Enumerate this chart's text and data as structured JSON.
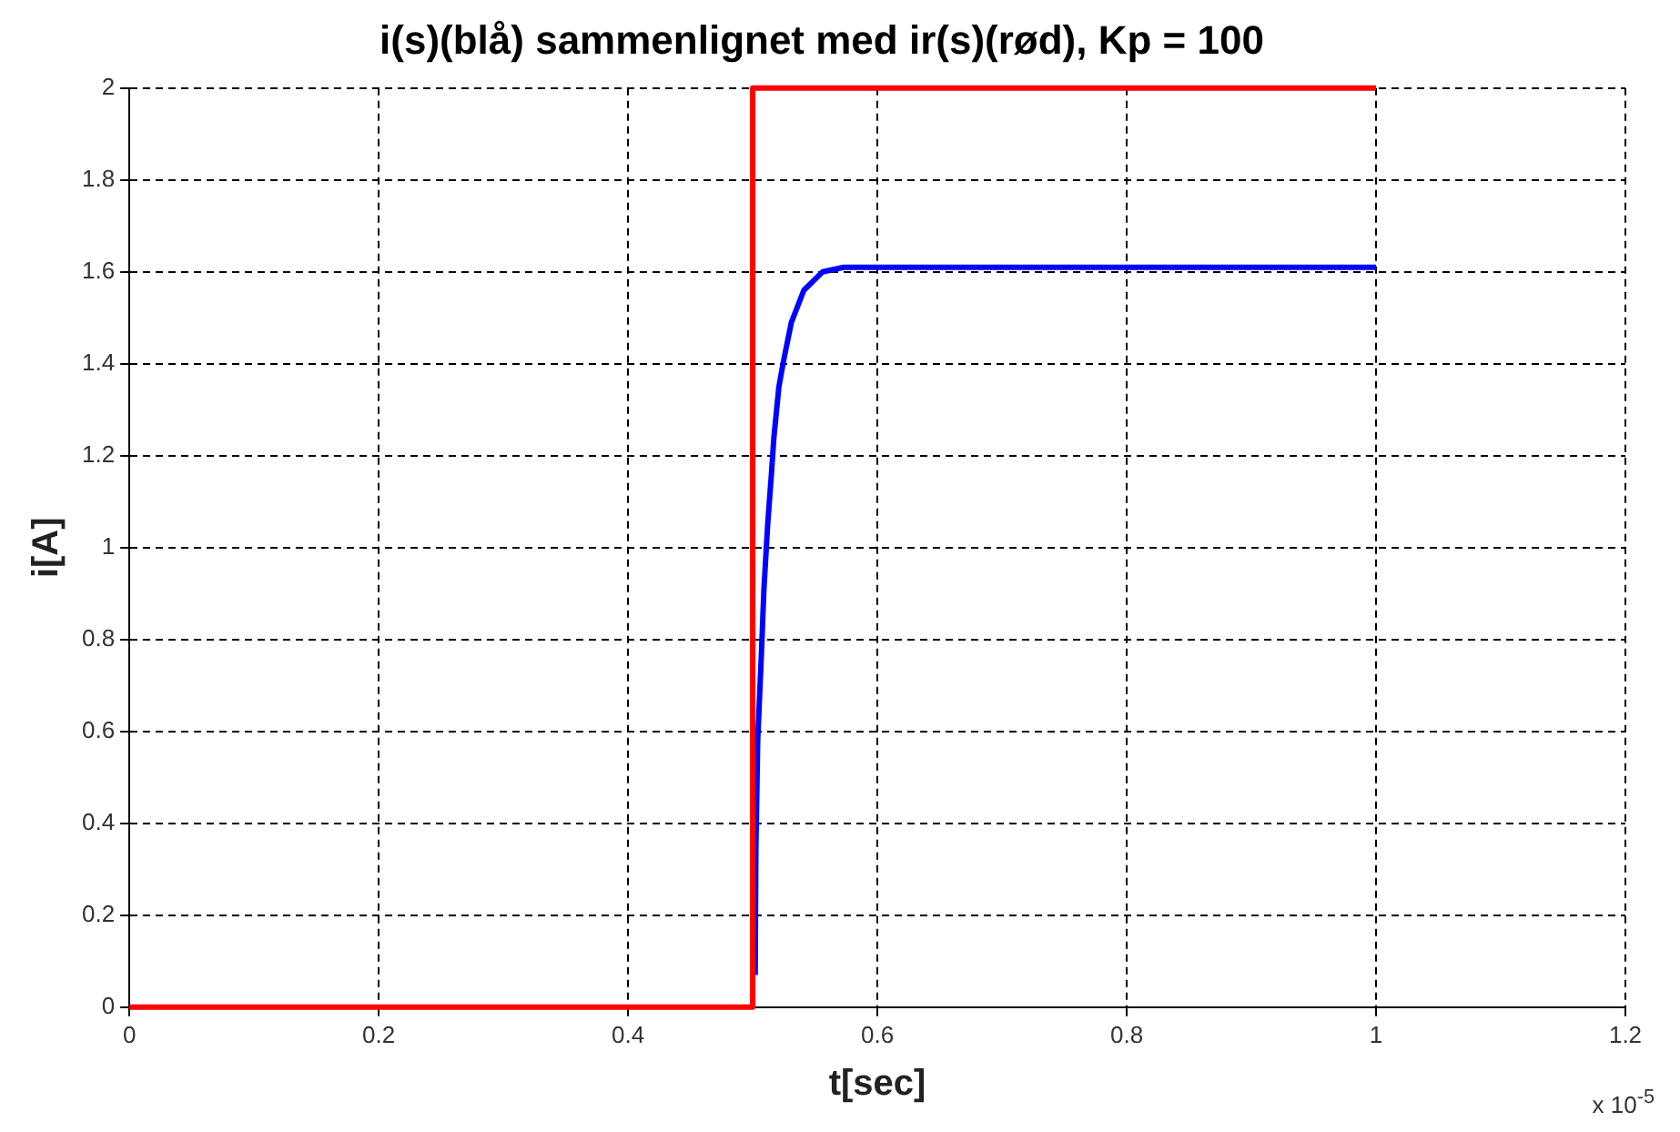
{
  "chart_data": {
    "type": "line",
    "title": "i(s)(blå) sammenlignet med ir(s)(rød), Kp = 100",
    "xlabel": "t[sec]",
    "ylabel": "i[A]",
    "annotations": [
      "x 10$^{-5}$"
    ],
    "xlim": [
      0,
      1.2
    ],
    "xticks": [
      0,
      0.2,
      0.4,
      0.6,
      0.8,
      1,
      1.2
    ],
    "ylim": [
      0,
      2
    ],
    "yticks": [
      0,
      0.2,
      0.4,
      0.6,
      0.8,
      1,
      1.2,
      1.4,
      1.6,
      1.8,
      2
    ],
    "grid": true,
    "marker": "none",
    "line_style": "solid",
    "series": [
      {
        "color": "#ff0000",
        "x": [
          0,
          0.5,
          0.5,
          1
        ],
        "values": [
          0,
          0,
          2,
          2
        ]
      },
      {
        "color": "#0000ff",
        "x": [
          0.502,
          0.5025,
          0.504,
          0.507,
          0.509,
          0.512,
          0.515,
          0.517,
          0.521,
          0.525,
          0.531,
          0.541,
          0.556,
          0.573,
          0.66,
          1
        ],
        "values": [
          0.07,
          0.34,
          0.58,
          0.77,
          0.91,
          1.05,
          1.16,
          1.24,
          1.35,
          1.41,
          1.49,
          1.56,
          1.6,
          1.61,
          1.61,
          1.61
        ]
      }
    ]
  }
}
